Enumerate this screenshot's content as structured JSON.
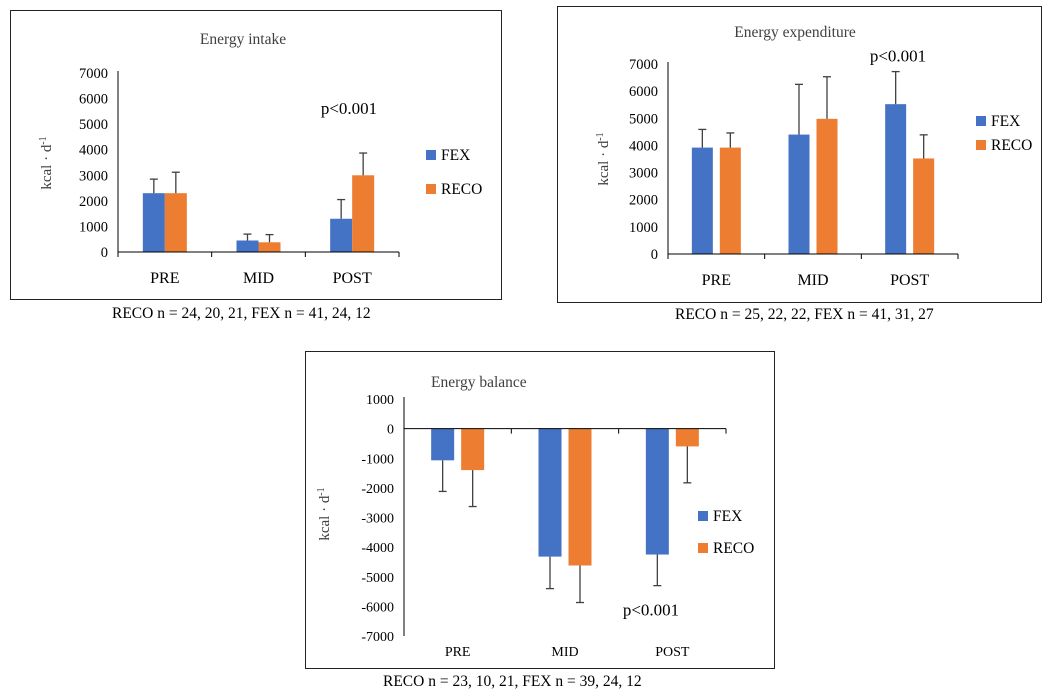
{
  "colors": {
    "FEX": "#4472C4",
    "RECO": "#ED7D31",
    "axis": "#000000",
    "error": "#404040"
  },
  "chart_data": [
    {
      "type": "bar",
      "title": "Energy intake",
      "ylabel_main": "kcal · d",
      "ylabel_sup": "-1",
      "categories": [
        "PRE",
        "MID",
        "POST"
      ],
      "ylim": [
        0,
        7000
      ],
      "yticks": [
        0,
        1000,
        2000,
        3000,
        4000,
        5000,
        6000,
        7000
      ],
      "legend_position": "right",
      "series": [
        {
          "name": "FEX",
          "values": [
            2300,
            450,
            1300
          ],
          "errors": [
            550,
            250,
            750
          ]
        },
        {
          "name": "RECO",
          "values": [
            2300,
            380,
            3000
          ],
          "errors": [
            820,
            300,
            870
          ]
        }
      ],
      "annotation": {
        "text": "p<0.001",
        "category": "POST",
        "y": 5400
      },
      "caption": "RECO n = 24, 20, 21, FEX n = 41, 24, 12"
    },
    {
      "type": "bar",
      "title": "Energy expenditure",
      "ylabel_main": "kcal · d",
      "ylabel_sup": "-1",
      "categories": [
        "PRE",
        "MID",
        "POST"
      ],
      "ylim": [
        0,
        7000
      ],
      "yticks": [
        0,
        1000,
        2000,
        3000,
        4000,
        5000,
        6000,
        7000
      ],
      "legend_position": "right",
      "series": [
        {
          "name": "FEX",
          "values": [
            3920,
            4400,
            5520
          ],
          "errors": [
            670,
            1850,
            1200
          ]
        },
        {
          "name": "RECO",
          "values": [
            3920,
            4980,
            3520
          ],
          "errors": [
            540,
            1550,
            870
          ]
        }
      ],
      "annotation": {
        "text": "p<0.001",
        "category": "POST",
        "y": 7100
      },
      "caption": "RECO n = 25, 22, 22, FEX n = 41, 31, 27"
    },
    {
      "type": "bar",
      "title": "Energy balance",
      "ylabel_main": "kcal · d",
      "ylabel_sup": "-1",
      "categories": [
        "PRE",
        "MID",
        "POST"
      ],
      "ylim": [
        -7000,
        1000
      ],
      "yticks": [
        -7000,
        -6000,
        -5000,
        -4000,
        -3000,
        -2000,
        -1000,
        0,
        1000
      ],
      "legend_position": "right",
      "series": [
        {
          "name": "FEX",
          "values": [
            -1070,
            -4320,
            -4250
          ],
          "errors": [
            1050,
            1080,
            1050
          ]
        },
        {
          "name": "RECO",
          "values": [
            -1400,
            -4620,
            -600
          ],
          "errors": [
            1230,
            1250,
            1230
          ]
        }
      ],
      "annotation": {
        "text": "p<0.001",
        "category": "POST",
        "y": -6300
      },
      "caption": "RECO n = 23, 10, 21, FEX n = 39, 24, 12"
    }
  ]
}
